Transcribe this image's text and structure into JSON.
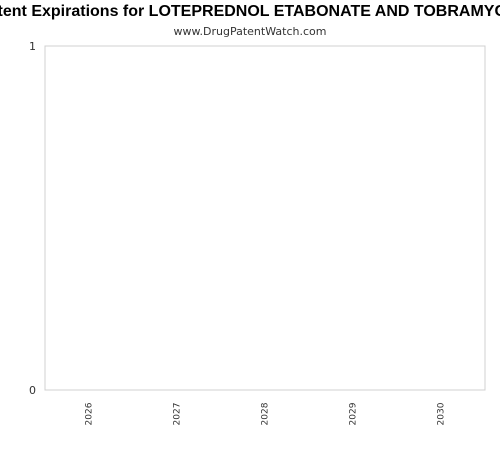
{
  "chart_data": {
    "type": "bar",
    "title": "Patent Expirations for LOTEPREDNOL ETABONATE AND TOBRAMYCIN",
    "subtitle": "www.DrugPatentWatch.com",
    "categories": [
      "2026",
      "2027",
      "2028",
      "2029",
      "2030"
    ],
    "series": [
      {
        "values": [
          0,
          0,
          0,
          0,
          0
        ]
      }
    ],
    "y_ticks": [
      "0",
      "1"
    ],
    "ylim": [
      0,
      1
    ],
    "xlabel": "",
    "ylabel": "",
    "grid": false,
    "legend": "none"
  },
  "colors": {
    "plot_border": "#d0d0d0",
    "text": "#333333",
    "bar": "#4a7fc1"
  }
}
